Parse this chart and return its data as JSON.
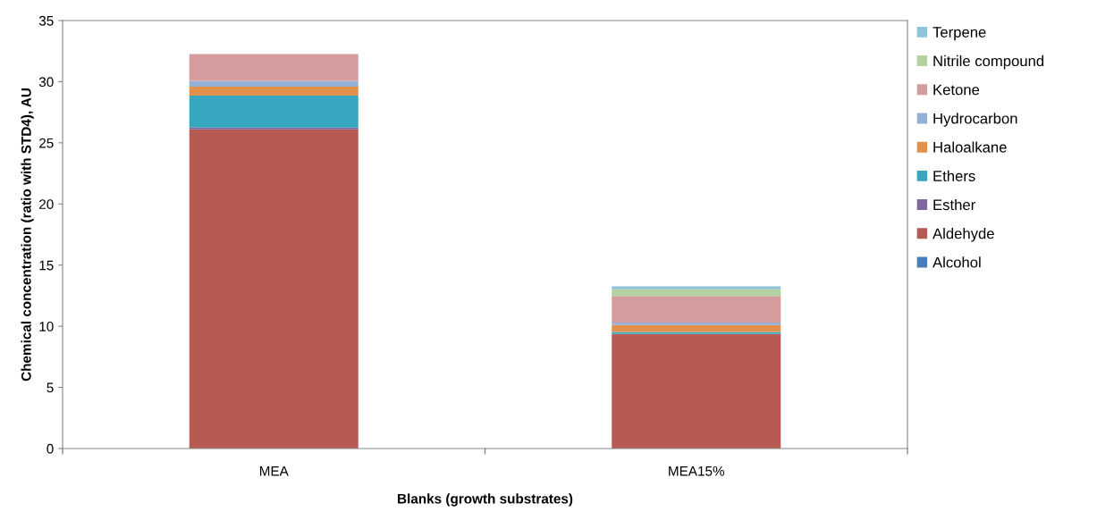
{
  "chart_data": {
    "type": "bar",
    "stacked": true,
    "xlabel": "Blanks (growth substrates)",
    "ylabel": "Chemical concentration (ratio with STD4), AU",
    "categories": [
      "MEA",
      "MEA15%"
    ],
    "series": [
      {
        "name": "Alcohol",
        "color": "#4a7ebb",
        "values": [
          0,
          null
        ]
      },
      {
        "name": "Aldehyde",
        "color": "#b85a54",
        "values": [
          26.1,
          9.38
        ]
      },
      {
        "name": "Esther",
        "color": "#7f66a0",
        "values": [
          0.15,
          0
        ]
      },
      {
        "name": "Ethers",
        "color": "#37a7bf",
        "values": [
          2.62,
          0.16
        ]
      },
      {
        "name": "Haloalkane",
        "color": "#e3904c",
        "values": [
          0.72,
          0.57
        ]
      },
      {
        "name": "Hydrocarbon",
        "color": "#93b0d6",
        "values": [
          0.47,
          0.2
        ]
      },
      {
        "name": "Ketone",
        "color": "#d59c9d",
        "values": [
          2.2,
          2.17
        ]
      },
      {
        "name": "Nitrile compound",
        "color": "#b4d1a0",
        "values": [
          0,
          0.55
        ]
      },
      {
        "name": "Terpene",
        "color": "#8dc4d9",
        "values": [
          0,
          0.23
        ]
      }
    ],
    "ylim": [
      0,
      35
    ],
    "yticks": [
      0,
      5,
      10,
      15,
      20,
      25,
      30,
      35
    ],
    "grid": false,
    "legend": "right"
  }
}
